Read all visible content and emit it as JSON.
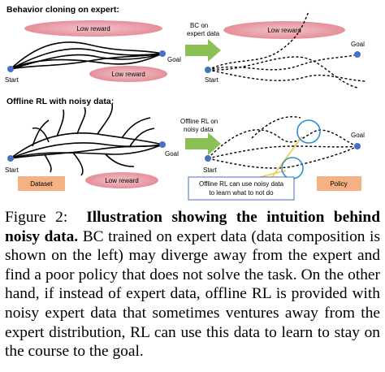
{
  "top_panel": {
    "title": "Behavior cloning on expert:",
    "expert": {
      "low_reward_top": "Low reward",
      "low_reward_bottom": "Low reward",
      "start": "Start",
      "goal": "Goal"
    },
    "arrow_label": [
      "BC on",
      "expert data"
    ],
    "policy": {
      "low_reward": "Low reward",
      "start": "Start",
      "goal": "Goal"
    }
  },
  "bottom_panel": {
    "title": "Offline RL with noisy data:",
    "dataset": {
      "start": "Start",
      "goal": "Goal",
      "box": "Dataset",
      "low_reward": "Low reward"
    },
    "arrow_label": [
      "Offline RL on",
      "noisy data"
    ],
    "policy": {
      "start": "Start",
      "goal": "Goal",
      "callout": [
        "Offline RL can use noisy data",
        "to learn what to not do"
      ],
      "box": "Policy"
    }
  },
  "caption": {
    "label": "Figure 2:",
    "title": "Illustration showing the intuition behind noisy data.",
    "body": "BC trained on expert data (data composition is shown on the left) may diverge away from the expert and find a poor policy that does not solve the task. On the other hand, if instead of expert data, offline RL is provided with noisy expert data that sometimes ventures away from the expert distribution, RL can use this data to learn to stay on the course to the goal."
  }
}
